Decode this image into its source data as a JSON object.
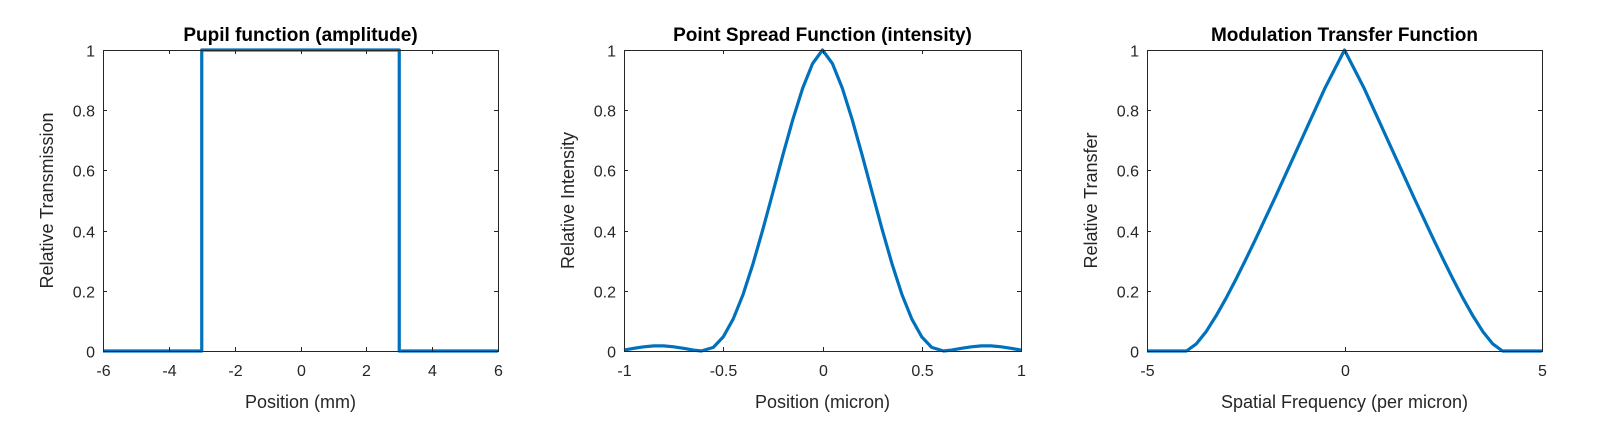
{
  "colors": {
    "series": "#0072BD",
    "axes": "#262626",
    "background": "#FFFFFF"
  },
  "chart_data": [
    {
      "type": "line",
      "title": "Pupil function (amplitude)",
      "xlabel": "Position (mm)",
      "ylabel": "Relative Transmission",
      "xlim": [
        -6,
        6
      ],
      "ylim": [
        0,
        1
      ],
      "xticks": [
        -6,
        -4,
        -2,
        0,
        2,
        4,
        6
      ],
      "xtick_labels": [
        "-6",
        "-4",
        "-2",
        "0",
        "2",
        "4",
        "6"
      ],
      "yticks": [
        0,
        0.2,
        0.4,
        0.6,
        0.8,
        1
      ],
      "ytick_labels": [
        "0",
        "0.2",
        "0.4",
        "0.6",
        "0.8",
        "1"
      ],
      "grid": false,
      "legend": "none",
      "series": [
        {
          "x": [
            -6,
            -3,
            -3,
            3,
            3,
            6
          ],
          "y": [
            0,
            0,
            1,
            1,
            0,
            0
          ]
        }
      ]
    },
    {
      "type": "line",
      "title": "Point Spread Function (intensity)",
      "xlabel": "Position (micron)",
      "ylabel": "Relative Intensity",
      "xlim": [
        -1,
        1
      ],
      "ylim": [
        0,
        1
      ],
      "xticks": [
        -1,
        -0.5,
        0,
        0.5,
        1
      ],
      "xtick_labels": [
        "-1",
        "-0.5",
        "0",
        "0.5",
        "1"
      ],
      "yticks": [
        0,
        0.2,
        0.4,
        0.6,
        0.8,
        1
      ],
      "ytick_labels": [
        "0",
        "0.2",
        "0.4",
        "0.6",
        "0.8",
        "1"
      ],
      "grid": false,
      "legend": "none",
      "series": [
        {
          "x": [
            -1,
            -0.95,
            -0.9,
            -0.85,
            -0.8,
            -0.75,
            -0.7,
            -0.65,
            -0.61,
            -0.55,
            -0.5,
            -0.45,
            -0.4,
            -0.35,
            -0.3,
            -0.25,
            -0.2,
            -0.15,
            -0.1,
            -0.05,
            0,
            0.05,
            0.1,
            0.15,
            0.2,
            0.25,
            0.3,
            0.35,
            0.4,
            0.45,
            0.5,
            0.55,
            0.61,
            0.65,
            0.7,
            0.75,
            0.8,
            0.85,
            0.9,
            0.95,
            1
          ],
          "y": [
            0.003,
            0.009,
            0.014,
            0.017,
            0.017,
            0.014,
            0.009,
            0.003,
            0,
            0.012,
            0.047,
            0.106,
            0.188,
            0.29,
            0.405,
            0.527,
            0.65,
            0.768,
            0.873,
            0.955,
            1,
            0.955,
            0.873,
            0.768,
            0.65,
            0.527,
            0.405,
            0.29,
            0.188,
            0.106,
            0.047,
            0.012,
            0,
            0.003,
            0.009,
            0.014,
            0.017,
            0.017,
            0.014,
            0.009,
            0.003
          ]
        }
      ]
    },
    {
      "type": "line",
      "title": "Modulation Transfer Function",
      "xlabel": "Spatial Frequency (per micron)",
      "ylabel": "Relative Transfer",
      "xlim": [
        -5,
        5
      ],
      "ylim": [
        0,
        1
      ],
      "xticks": [
        -5,
        0,
        5
      ],
      "xtick_labels": [
        "-5",
        "0",
        "5"
      ],
      "yticks": [
        0,
        0.2,
        0.4,
        0.6,
        0.8,
        1
      ],
      "ytick_labels": [
        "0",
        "0.2",
        "0.4",
        "0.6",
        "0.8",
        "1"
      ],
      "grid": false,
      "legend": "none",
      "series": [
        {
          "x": [
            -5,
            -4,
            -3.75,
            -3.5,
            -3.25,
            -3,
            -2.75,
            -2.5,
            -2.25,
            -2,
            -1.75,
            -1.5,
            -1.25,
            -1,
            -0.75,
            -0.5,
            -0.25,
            0,
            0.25,
            0.5,
            0.75,
            1,
            1.25,
            1.5,
            1.75,
            2,
            2.25,
            2.5,
            2.75,
            3,
            3.25,
            3.5,
            3.75,
            4,
            5
          ],
          "y": [
            0,
            0,
            0.024,
            0.065,
            0.117,
            0.175,
            0.238,
            0.304,
            0.372,
            0.442,
            0.512,
            0.584,
            0.656,
            0.728,
            0.8,
            0.872,
            0.936,
            1,
            0.936,
            0.872,
            0.8,
            0.728,
            0.656,
            0.584,
            0.512,
            0.442,
            0.372,
            0.304,
            0.238,
            0.175,
            0.117,
            0.065,
            0.024,
            0,
            0
          ]
        }
      ]
    }
  ]
}
